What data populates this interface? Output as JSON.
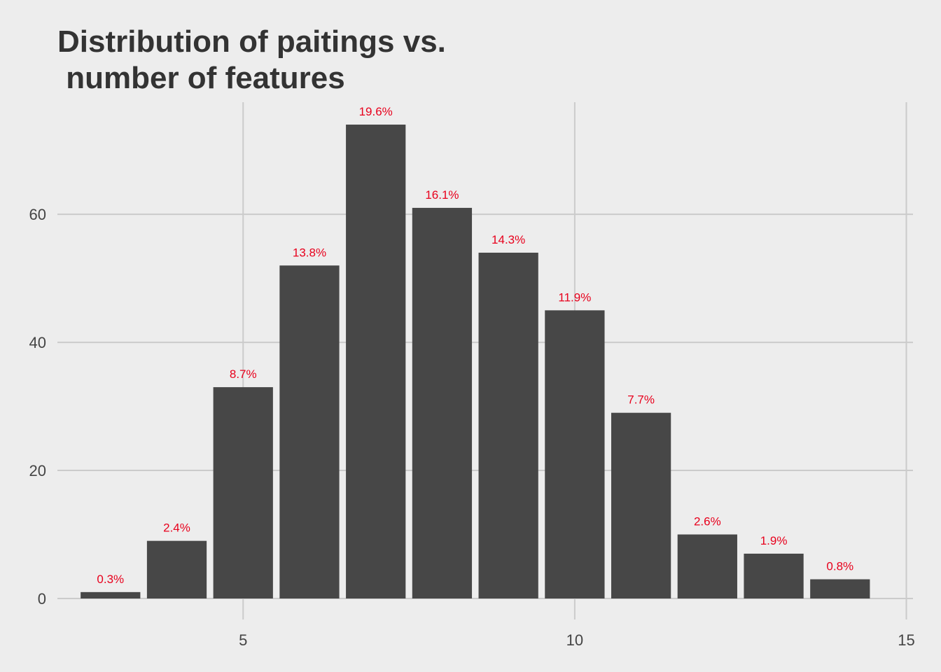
{
  "chart_data": {
    "type": "bar",
    "title_lines": [
      "Distribution of paitings vs.",
      " number of features"
    ],
    "xlabel": "",
    "ylabel": "",
    "x": [
      3,
      4,
      5,
      6,
      7,
      8,
      9,
      10,
      11,
      12,
      13,
      14
    ],
    "values": [
      1,
      9,
      33,
      52,
      74,
      61,
      54,
      45,
      29,
      10,
      7,
      3
    ],
    "labels": [
      "0.3%",
      "2.4%",
      "8.7%",
      "13.8%",
      "19.6%",
      "16.1%",
      "14.3%",
      "11.9%",
      "7.7%",
      "2.6%",
      "1.9%",
      "0.8%"
    ],
    "xlim": [
      2.2,
      15.1
    ],
    "ylim": [
      0,
      77.5
    ],
    "x_ticks": [
      5,
      10,
      15
    ],
    "y_ticks": [
      0,
      20,
      40,
      60
    ],
    "grid": true,
    "legend": "none",
    "colors": {
      "background": "#ededed",
      "bar": "#474747",
      "grid": "#cbcbcb",
      "label": "#e8001c",
      "title": "#333333",
      "tick": "#444444"
    }
  }
}
